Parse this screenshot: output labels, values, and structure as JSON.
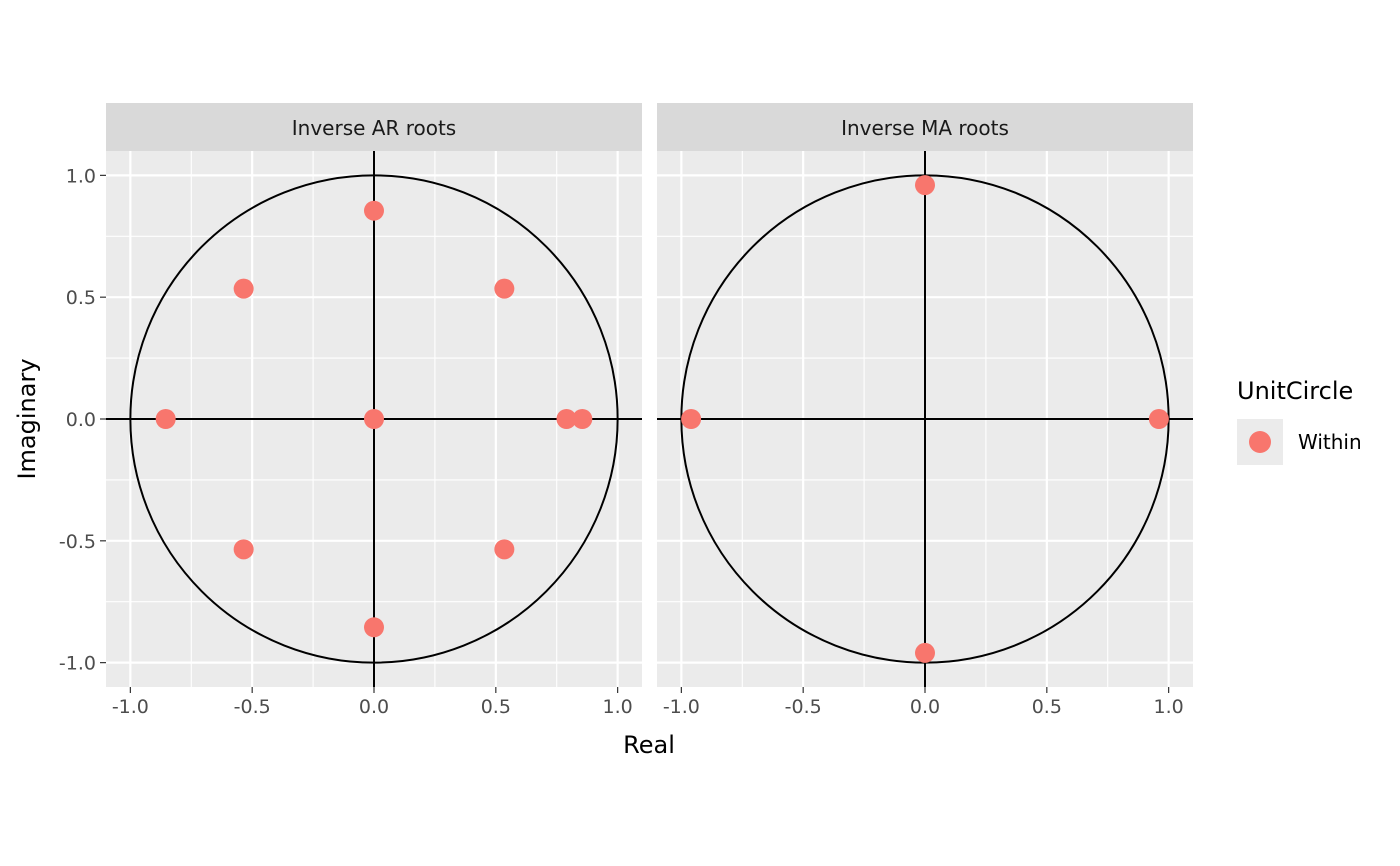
{
  "chart_data": {
    "type": "scatter",
    "xlabel": "Real",
    "ylabel": "Imaginary",
    "xlim": [
      -1.1,
      1.1
    ],
    "ylim": [
      -1.1,
      1.1
    ],
    "x_ticks": [
      -1.0,
      -0.5,
      0.0,
      0.5,
      1.0
    ],
    "y_ticks": [
      -1.0,
      -0.5,
      0.0,
      0.5,
      1.0
    ],
    "x_tick_labels": [
      "-1.0",
      "-0.5",
      "0.0",
      "0.5",
      "1.0"
    ],
    "y_tick_labels": [
      "-1.0",
      "-0.5",
      "0.0",
      "0.5",
      "1.0"
    ],
    "grid": true,
    "reference_lines": [
      "unit-circle",
      "x=0",
      "y=0"
    ],
    "legend": {
      "title": "UnitCircle",
      "position": "right",
      "entries": [
        {
          "label": "Within",
          "color": "#F8766D"
        }
      ]
    },
    "panels": [
      {
        "title": "Inverse AR roots",
        "points": [
          {
            "x": 0.0,
            "y": 0.855,
            "group": "Within"
          },
          {
            "x": -0.535,
            "y": 0.535,
            "group": "Within"
          },
          {
            "x": 0.535,
            "y": 0.535,
            "group": "Within"
          },
          {
            "x": -0.855,
            "y": 0.0,
            "group": "Within"
          },
          {
            "x": 0.0,
            "y": 0.0,
            "group": "Within"
          },
          {
            "x": 0.79,
            "y": 0.0,
            "group": "Within"
          },
          {
            "x": 0.855,
            "y": 0.0,
            "group": "Within"
          },
          {
            "x": -0.535,
            "y": -0.535,
            "group": "Within"
          },
          {
            "x": 0.535,
            "y": -0.535,
            "group": "Within"
          },
          {
            "x": 0.0,
            "y": -0.855,
            "group": "Within"
          }
        ]
      },
      {
        "title": "Inverse MA roots",
        "points": [
          {
            "x": 0.0,
            "y": 0.96,
            "group": "Within"
          },
          {
            "x": -0.96,
            "y": 0.0,
            "group": "Within"
          },
          {
            "x": 0.96,
            "y": 0.0,
            "group": "Within"
          },
          {
            "x": 0.0,
            "y": -0.96,
            "group": "Within"
          }
        ]
      }
    ]
  },
  "colors": {
    "panel_background": "#EBEBEB",
    "strip_background": "#D9D9D9",
    "grid": "#FFFFFF",
    "point": "#F8766D",
    "reference": "#000000"
  }
}
